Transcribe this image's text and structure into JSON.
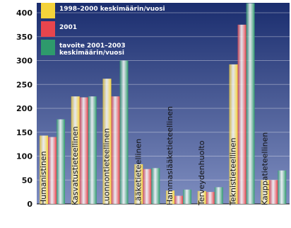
{
  "chart_data": {
    "type": "bar",
    "title": "",
    "xlabel": "",
    "ylabel": "",
    "ylim": [
      0,
      400
    ],
    "yticks": [
      0,
      50,
      100,
      150,
      200,
      250,
      300,
      350,
      400
    ],
    "grid": true,
    "legend_position": "top-left",
    "categories": [
      "Humanistinen",
      "Kasvatustieteellinen",
      "Luonnontieteellinen",
      "Lääketieteellinen",
      "Hammaslääketieteellinen",
      "Terveydenhuolto",
      "Teknistieteellinen",
      "Kauppatieteellinen"
    ],
    "series": [
      {
        "name": "1998–2000 keskimäärin/vuosi",
        "color": "#f5d33a",
        "values": [
          143,
          225,
          262,
          83,
          28,
          27,
          292,
          50
        ]
      },
      {
        "name": "2001",
        "color": "#e8454d",
        "values": [
          140,
          223,
          225,
          73,
          17,
          25,
          375,
          50
        ]
      },
      {
        "name": "tavoite 2001–2003 keskimäärin/vuosi",
        "color": "#2e9a6c",
        "values": [
          177,
          225,
          300,
          75,
          30,
          35,
          420,
          70
        ]
      }
    ],
    "legend_label_lines": [
      [
        "1998–2000 keskimäärin/vuosi"
      ],
      [
        "2001"
      ],
      [
        "tavoite 2001–2003",
        "keskimäärin/vuosi"
      ]
    ],
    "background_gradient": [
      "#1a2d6e",
      "#7f8ec0"
    ]
  }
}
